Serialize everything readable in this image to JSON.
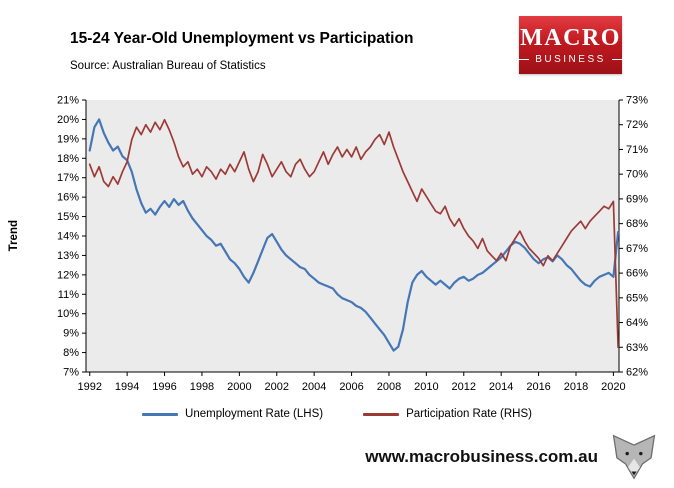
{
  "header": {
    "source": "Source: Australian Bureau of Statistics",
    "logo": {
      "line1": "MACRO",
      "line2": "BUSINESS",
      "bg_color": "#c01a20"
    }
  },
  "footer": {
    "website": "www.macrobusiness.com.au"
  },
  "chart_data": {
    "type": "line",
    "title": "15-24 Year-Old Unemployment vs Participation",
    "subtitle": "Source: Australian Bureau of Statistics",
    "ylabel_left": "Trend",
    "xlabel": "",
    "plot_bg": "#ebebeb",
    "legend_position": "bottom",
    "x_range": [
      1991.8,
      2020.3
    ],
    "x_ticks": [
      1992,
      1994,
      1996,
      1998,
      2000,
      2002,
      2004,
      2006,
      2008,
      2010,
      2012,
      2014,
      2016,
      2018,
      2020
    ],
    "left_axis": {
      "min": 7,
      "max": 21,
      "step": 1,
      "suffix": "%"
    },
    "right_axis": {
      "min": 62,
      "max": 73,
      "step": 1,
      "suffix": "%"
    },
    "series": [
      {
        "id": "unemployment-rate",
        "name": "Unemployment Rate (LHS)",
        "axis": "left",
        "color": "#4576b5",
        "width": 2.2,
        "x_start": 1992,
        "x_step": 0.25,
        "values": [
          18.4,
          19.6,
          20.0,
          19.3,
          18.8,
          18.4,
          18.6,
          18.1,
          17.9,
          17.3,
          16.4,
          15.7,
          15.2,
          15.4,
          15.1,
          15.5,
          15.8,
          15.5,
          15.9,
          15.6,
          15.8,
          15.3,
          14.9,
          14.6,
          14.3,
          14.0,
          13.8,
          13.5,
          13.6,
          13.2,
          12.8,
          12.6,
          12.3,
          11.9,
          11.6,
          12.1,
          12.7,
          13.3,
          13.9,
          14.1,
          13.7,
          13.3,
          13.0,
          12.8,
          12.6,
          12.4,
          12.3,
          12.0,
          11.8,
          11.6,
          11.5,
          11.4,
          11.3,
          11.0,
          10.8,
          10.7,
          10.6,
          10.4,
          10.3,
          10.1,
          9.8,
          9.5,
          9.2,
          8.9,
          8.5,
          8.1,
          8.3,
          9.2,
          10.6,
          11.6,
          12.0,
          12.2,
          11.9,
          11.7,
          11.5,
          11.7,
          11.5,
          11.3,
          11.6,
          11.8,
          11.9,
          11.7,
          11.8,
          12.0,
          12.1,
          12.3,
          12.5,
          12.7,
          12.9,
          13.2,
          13.5,
          13.7,
          13.6,
          13.4,
          13.1,
          12.8,
          12.6,
          12.8,
          12.9,
          12.7,
          13.0,
          12.8,
          12.5,
          12.3,
          12.0,
          11.7,
          11.5,
          11.4,
          11.7,
          11.9,
          12.0,
          12.1,
          11.9,
          14.2
        ]
      },
      {
        "id": "participation-rate",
        "name": "Participation Rate (RHS)",
        "axis": "right",
        "color": "#9c3a36",
        "width": 1.7,
        "x_start": 1992,
        "x_step": 0.25,
        "values": [
          70.4,
          69.9,
          70.3,
          69.7,
          69.5,
          69.9,
          69.6,
          70.1,
          70.5,
          71.4,
          71.9,
          71.6,
          72.0,
          71.7,
          72.1,
          71.8,
          72.2,
          71.8,
          71.3,
          70.7,
          70.3,
          70.5,
          70.0,
          70.2,
          69.9,
          70.3,
          70.1,
          69.8,
          70.2,
          70.0,
          70.4,
          70.1,
          70.5,
          70.9,
          70.2,
          69.7,
          70.1,
          70.8,
          70.4,
          69.9,
          70.2,
          70.5,
          70.1,
          69.9,
          70.4,
          70.6,
          70.2,
          69.9,
          70.1,
          70.5,
          70.9,
          70.4,
          70.8,
          71.1,
          70.7,
          71.0,
          70.7,
          71.1,
          70.6,
          70.9,
          71.1,
          71.4,
          71.6,
          71.2,
          71.7,
          71.1,
          70.6,
          70.1,
          69.7,
          69.3,
          68.9,
          69.4,
          69.1,
          68.8,
          68.5,
          68.4,
          68.7,
          68.2,
          67.9,
          68.2,
          67.8,
          67.5,
          67.3,
          67.0,
          67.4,
          66.9,
          66.7,
          66.5,
          66.8,
          66.5,
          67.1,
          67.4,
          67.7,
          67.3,
          67.0,
          66.8,
          66.6,
          66.3,
          66.7,
          66.5,
          66.8,
          67.1,
          67.4,
          67.7,
          67.9,
          68.1,
          67.8,
          68.1,
          68.3,
          68.5,
          68.7,
          68.6,
          68.9,
          63.0
        ]
      }
    ]
  }
}
